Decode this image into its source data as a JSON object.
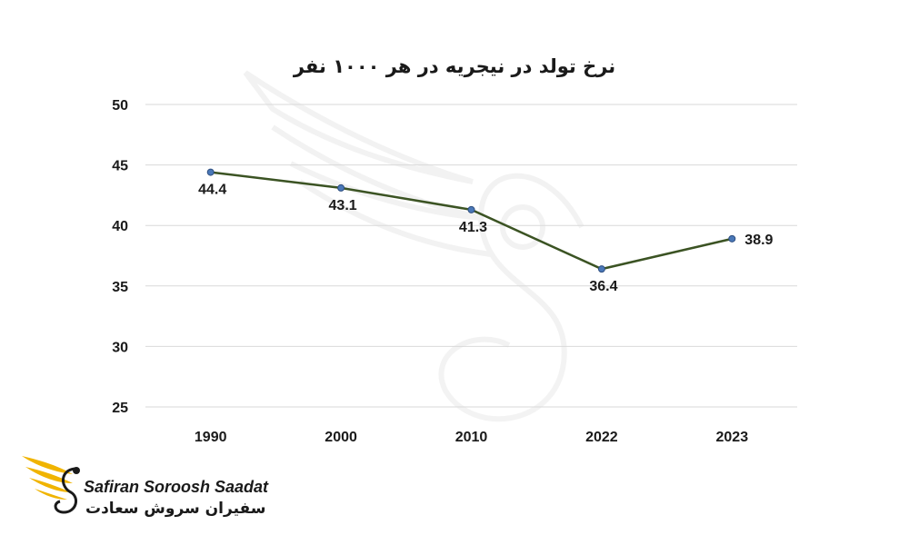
{
  "chart_data": {
    "type": "line",
    "title": "نرخ تولد در نیجریه در هر ۱۰۰۰ نفر",
    "categories": [
      "1990",
      "2000",
      "2010",
      "2022",
      "2023"
    ],
    "series": [
      {
        "values": [
          44.4,
          43.1,
          41.3,
          36.4,
          38.9
        ]
      }
    ],
    "data_labels": [
      "44.4",
      "43.1",
      "41.3",
      "36.4",
      "38.9"
    ],
    "ylim": [
      25,
      50
    ],
    "yticks": [
      "25",
      "30",
      "35",
      "40",
      "45",
      "50"
    ],
    "grid": true,
    "line_color": "#3b5323",
    "marker_color": "#4a78b8"
  },
  "logo": {
    "name_en": "Safiran Soroosh Saadat",
    "name_fa": "سفیران سروش سعادت",
    "accent_color": "#f0b400"
  }
}
